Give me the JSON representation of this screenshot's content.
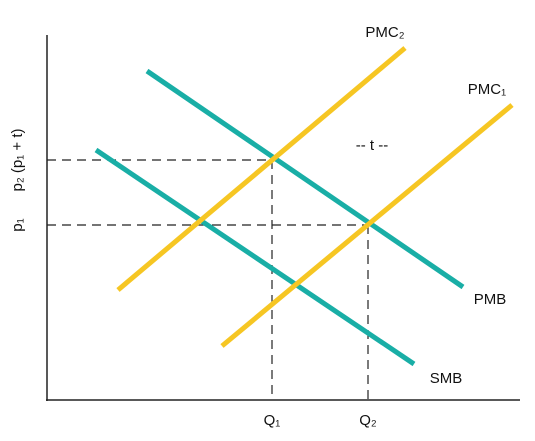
{
  "curves": {
    "pmc2": "PMC₂",
    "pmc1": "PMC₁",
    "pmb": "PMB",
    "smb": "SMB"
  },
  "tax_label": "-- t --",
  "x_axis": {
    "q1": "Q₁",
    "q2": "Q₂"
  },
  "y_axis": {
    "p1": "p₁",
    "p2": "p₂ (p₁ + t)"
  }
}
